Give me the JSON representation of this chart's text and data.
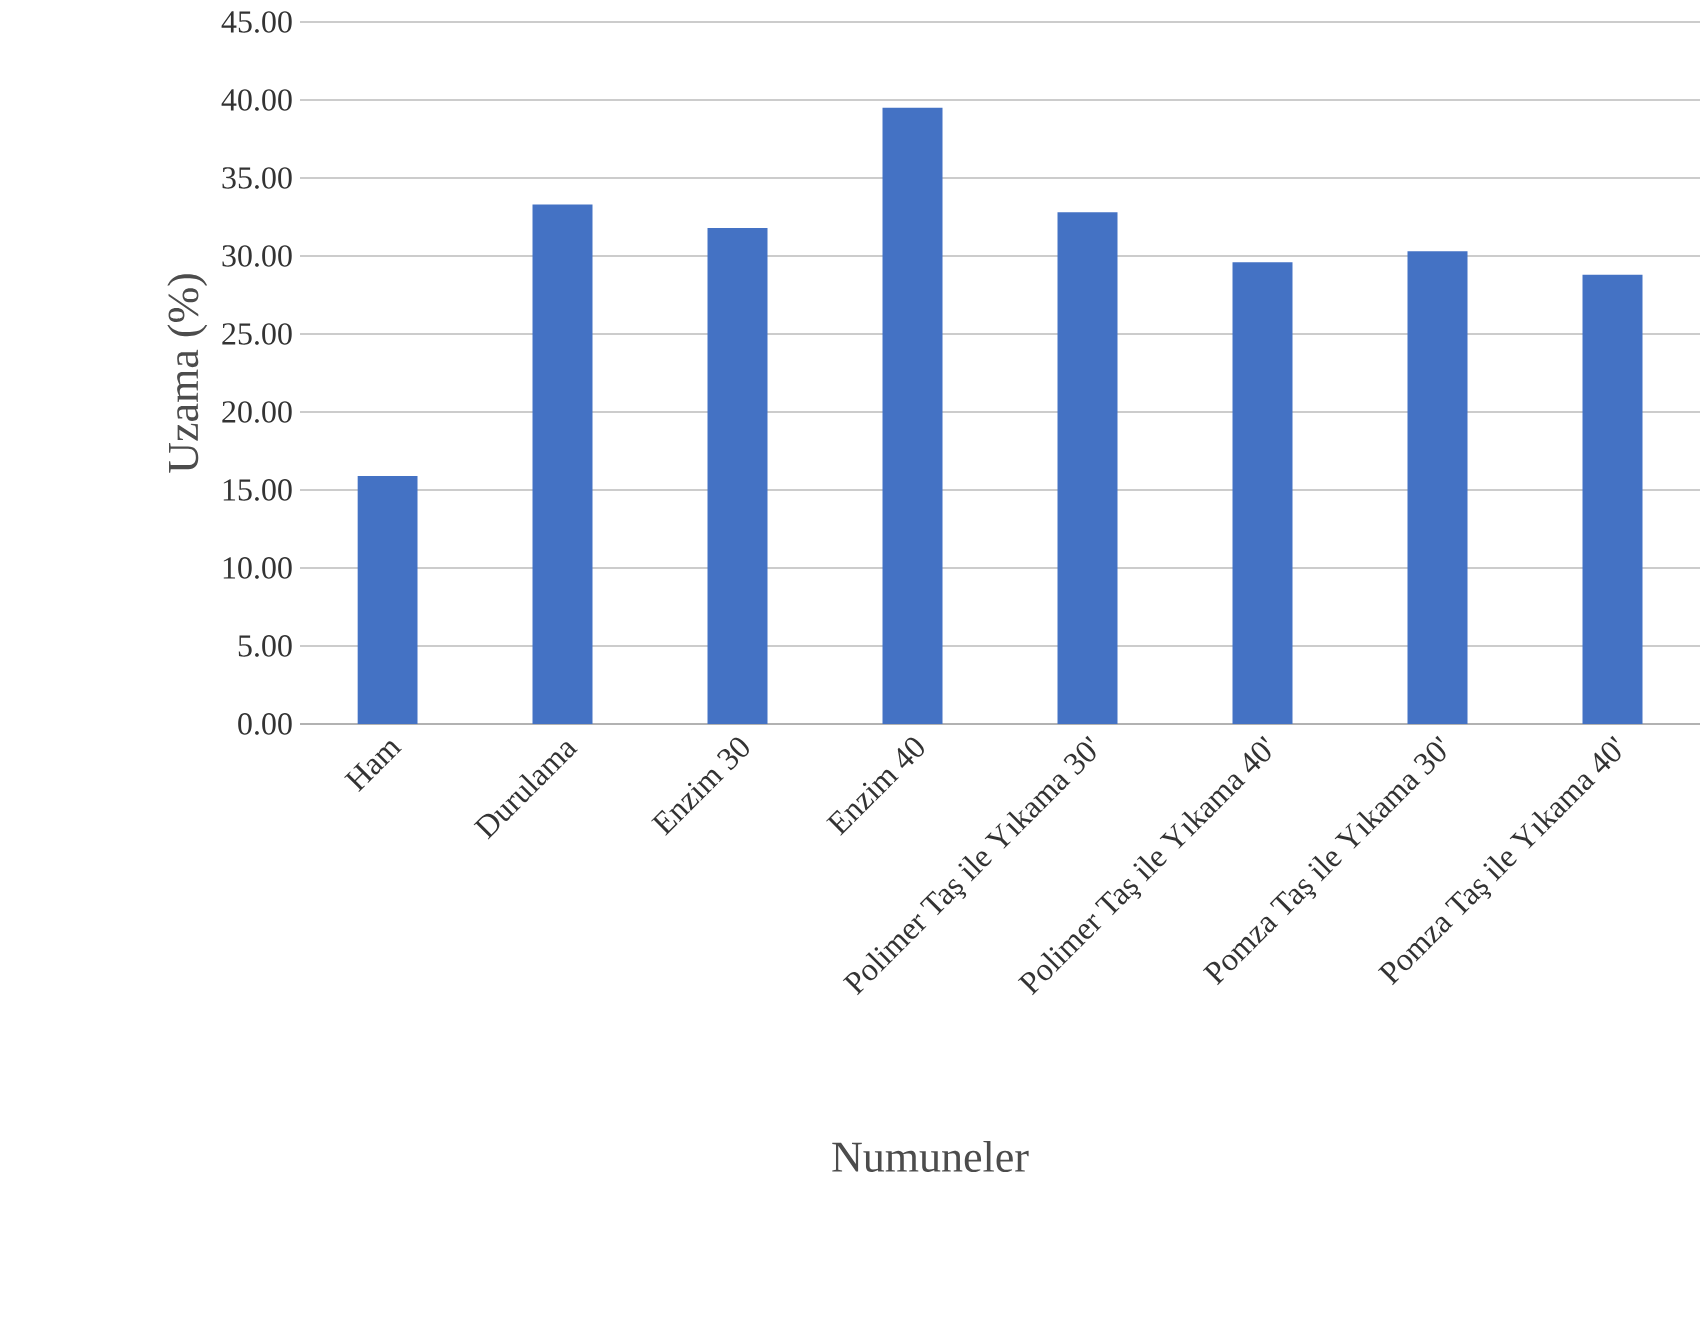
{
  "chart_data": {
    "type": "bar",
    "xlabel": "Numuneler",
    "ylabel": "Uzama (%)",
    "categories": [
      "Ham",
      "Durulama",
      "Enzim 30",
      "Enzim 40",
      "Polimer Taş ile Yıkama 30'",
      "Polimer Taş ile Yıkama 40'",
      "Pomza Taş ile Yıkama 30'",
      "Pomza Taş ile Yıkama 40'"
    ],
    "values": [
      15.9,
      33.3,
      31.8,
      39.5,
      32.8,
      29.6,
      30.3,
      28.8
    ],
    "color": "#4472c4",
    "ylim": [
      0,
      45
    ],
    "yticks": [
      {
        "value": 0,
        "label": "0.00"
      },
      {
        "value": 5,
        "label": "5.00"
      },
      {
        "value": 10,
        "label": "10.00"
      },
      {
        "value": 15,
        "label": "15.00"
      },
      {
        "value": 20,
        "label": "20.00"
      },
      {
        "value": 25,
        "label": "25.00"
      },
      {
        "value": 30,
        "label": "30.00"
      },
      {
        "value": 35,
        "label": "35.00"
      },
      {
        "value": 40,
        "label": "40.00"
      },
      {
        "value": 45,
        "label": "45.00"
      }
    ],
    "grid": "y"
  }
}
